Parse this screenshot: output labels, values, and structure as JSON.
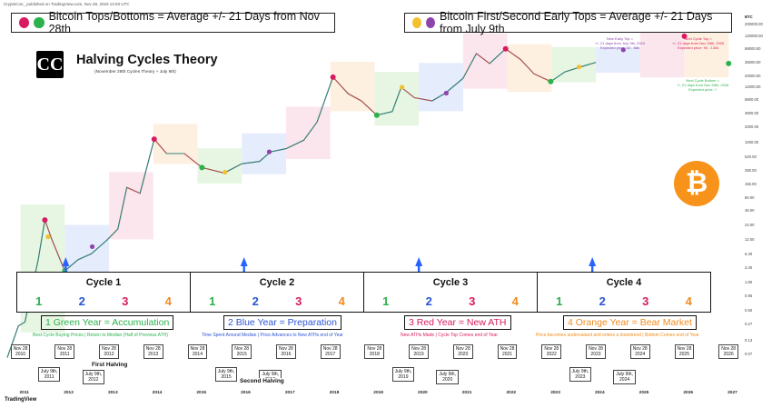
{
  "publisher": "CryptoCon_ published on TradingView.com, Nov 28, 2023 14:03 UTC",
  "header_left": "Bitcoin Tops/Bottoms = Average +/- 21 Days from Nov 28th",
  "header_right": "Bitcoin  First/Second Early Tops = Average +/- 21 Days from July 9th",
  "logo_text": "CC",
  "title": "Halving Cycles Theory",
  "subtitle": "(November 28th Cycles Theory + July 9th)",
  "currency_label": "BTC",
  "btc_symbol": "₿",
  "annotation_top": [
    "New Early Top =",
    "+/- 21 days from July 9th, 2024",
    "Expected price: 62 - 68k"
  ],
  "annotation_top2": [
    "Next Cycle Top =",
    "+/- 21 days from Nov 28th, 2025",
    "Expected price: 90 - 130k"
  ],
  "annotation_bottom": [
    "Next Cycle Bottom =",
    "+/- 21 days from Nov 28th, 2026",
    "Expected price: ?"
  ],
  "cycles": [
    {
      "title": "Cycle 1",
      "nums": [
        "1",
        "2",
        "3",
        "4"
      ]
    },
    {
      "title": "Cycle 2",
      "nums": [
        "1",
        "2",
        "3",
        "4"
      ]
    },
    {
      "title": "Cycle 3",
      "nums": [
        "1",
        "2",
        "3",
        "4"
      ]
    },
    {
      "title": "Cycle 4",
      "nums": [
        "1",
        "2",
        "3",
        "4"
      ]
    }
  ],
  "legend": [
    {
      "label": "1 Green Year = Accumulation",
      "desc": "Best Cycle Buying Prices | Return to Median (Half of Previous ATH)",
      "color": "#2bb24c"
    },
    {
      "label": "2 Blue Year = Preparation",
      "desc": "Time Spent Around Median | Price Advances to New ATHs end of Year",
      "color": "#2b55d4"
    },
    {
      "label": "3 Red Year = New ATH",
      "desc": "New ATHs Made | Cycle Top Comes end of Year",
      "color": "#d81b60"
    },
    {
      "label": "4 Orange Year = Bear Market",
      "desc": "Price becomes undervalued and enters a downtrend | Bottom Comes end of Year",
      "color": "#f08a1c"
    }
  ],
  "nov_dates": [
    "Nov 28\n2010",
    "Nov 28\n2011",
    "Nov 28\n2012",
    "Nov 28\n2013",
    "Nov 28\n2014",
    "Nov 28\n2015",
    "Nov 28\n2016",
    "Nov 28\n2017",
    "Nov 28\n2018",
    "Nov 28\n2019",
    "Nov 28\n2020",
    "Nov 28\n2021",
    "Nov 28\n2022",
    "Nov 28\n2023",
    "Nov 28\n2024",
    "Nov 28\n2025",
    "Nov 28\n2026"
  ],
  "july_dates": [
    "July 9th,\n2011",
    "July 9th,\n2012",
    "July 9th,\n2015",
    "July 9th,\n2016",
    "July 9th,\n2019",
    "July 9th,\n2020",
    "July 9th,\n2023",
    "July 9th,\n2024"
  ],
  "halvings": [
    "First Halving",
    "Second Halving"
  ],
  "tv_label": "TradingView",
  "chart_data": {
    "type": "line",
    "title": "Halving Cycles Theory",
    "scale": "log",
    "x_axis_ticks": [
      "2011",
      "2012",
      "2013",
      "2014",
      "2015",
      "2016",
      "2017",
      "2018",
      "2019",
      "2020",
      "2021",
      "2022",
      "2023",
      "2024",
      "2025",
      "2026",
      "2027"
    ],
    "y_axis_ticks": [
      "200000.00",
      "120000.00",
      "68000.00",
      "36000.00",
      "20000.00",
      "12000.00",
      "6800.00",
      "3600.00",
      "2000.00",
      "1000.00",
      "520.00",
      "280.00",
      "150.00",
      "80.00",
      "46.00",
      "24.00",
      "12.00",
      "6.40",
      "3.40",
      "1.80",
      "0.95",
      "0.50",
      "0.27",
      "0.13",
      "0.07"
    ],
    "ylim": [
      0.05,
      250000
    ],
    "xlim": [
      2010.6,
      2027.1
    ],
    "series": [
      {
        "name": "BTC price",
        "x": [
          2010.6,
          2010.85,
          2011.0,
          2011.3,
          2011.45,
          2011.6,
          2011.9,
          2012.2,
          2012.5,
          2012.85,
          2013.1,
          2013.3,
          2013.6,
          2013.92,
          2014.2,
          2014.6,
          2015.0,
          2015.5,
          2015.9,
          2016.3,
          2016.55,
          2016.9,
          2017.3,
          2017.6,
          2017.96,
          2018.3,
          2018.6,
          2018.95,
          2019.3,
          2019.5,
          2019.8,
          2020.2,
          2020.5,
          2020.9,
          2021.2,
          2021.5,
          2021.86,
          2022.2,
          2022.5,
          2022.88,
          2023.2,
          2023.55,
          2023.9
        ],
        "y": [
          0.06,
          0.25,
          0.3,
          5,
          30,
          13,
          3,
          5,
          6.5,
          12,
          20,
          130,
          100,
          1150,
          600,
          600,
          320,
          250,
          380,
          420,
          650,
          750,
          1100,
          2500,
          19000,
          9000,
          6500,
          3400,
          4000,
          12000,
          7500,
          6500,
          9200,
          18000,
          55000,
          35000,
          68000,
          42000,
          22000,
          15500,
          24000,
          30000,
          37000
        ]
      }
    ],
    "tops_bottoms_nov28": [
      {
        "x": 2011.45,
        "y": 30,
        "color": "#d81b60"
      },
      {
        "x": 2011.9,
        "y": 3,
        "color": "#2bb24c"
      },
      {
        "x": 2013.92,
        "y": 1150,
        "color": "#d81b60"
      },
      {
        "x": 2015.0,
        "y": 320,
        "color": "#2bb24c"
      },
      {
        "x": 2017.96,
        "y": 19000,
        "color": "#d81b60"
      },
      {
        "x": 2018.95,
        "y": 3400,
        "color": "#2bb24c"
      },
      {
        "x": 2021.86,
        "y": 68000,
        "color": "#d81b60"
      },
      {
        "x": 2022.88,
        "y": 15500,
        "color": "#2bb24c"
      },
      {
        "x": 2025.9,
        "y": 120000,
        "color": "#d81b60"
      },
      {
        "x": 2026.9,
        "y": 35000,
        "color": "#2bb24c"
      }
    ],
    "early_tops_july9": [
      {
        "x": 2011.52,
        "y": 14,
        "color": "#f2c12e"
      },
      {
        "x": 2012.52,
        "y": 9,
        "color": "#8e44ad"
      },
      {
        "x": 2015.52,
        "y": 260,
        "color": "#f2c12e"
      },
      {
        "x": 2016.52,
        "y": 650,
        "color": "#8e44ad"
      },
      {
        "x": 2019.52,
        "y": 12000,
        "color": "#f2c12e"
      },
      {
        "x": 2020.52,
        "y": 9200,
        "color": "#8e44ad"
      },
      {
        "x": 2023.52,
        "y": 30000,
        "color": "#f2c12e"
      },
      {
        "x": 2024.52,
        "y": 65000,
        "color": "#8e44ad"
      }
    ],
    "up_arrows_x": [
      2011.92,
      2015.95,
      2019.9,
      2023.82
    ]
  }
}
